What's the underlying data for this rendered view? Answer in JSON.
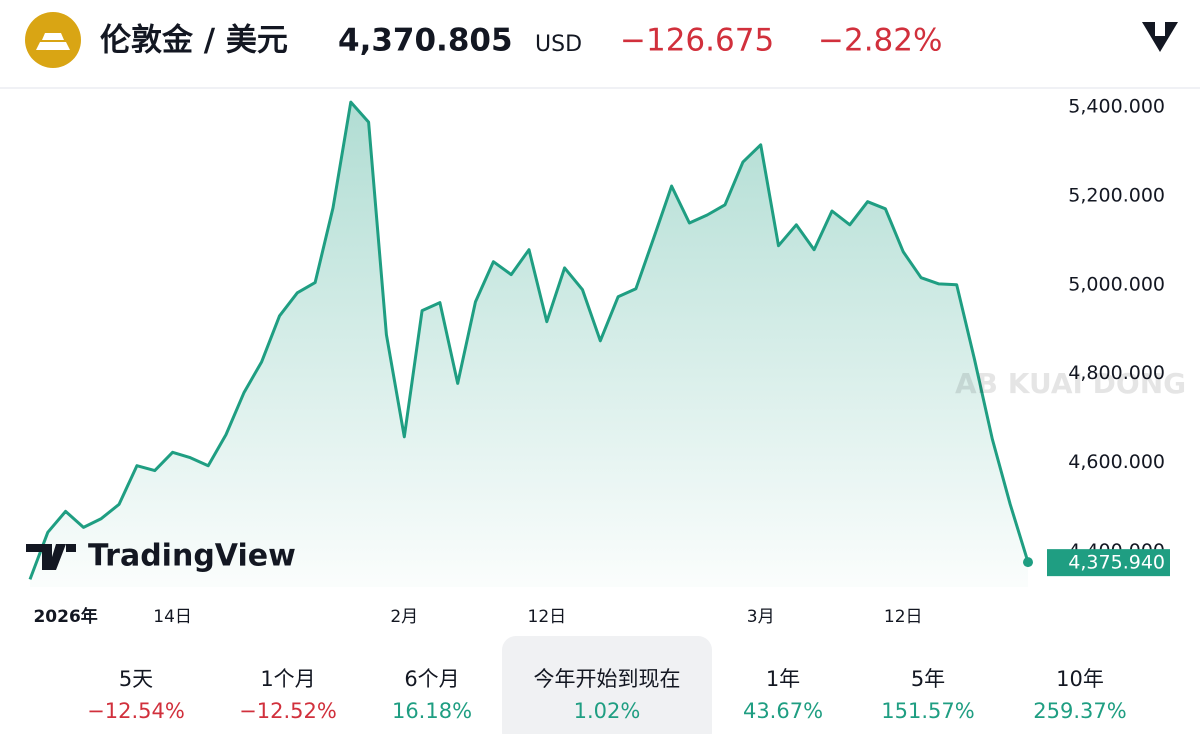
{
  "header": {
    "title": "伦敦金 / 美元",
    "price": "4,370.805",
    "currency": "USD",
    "change": "−126.675",
    "change_percent": "−2.82%"
  },
  "chart_data": {
    "type": "line",
    "color": "#1f9e82",
    "categories": [
      null,
      null,
      "2026年",
      null,
      null,
      null,
      null,
      null,
      "14日",
      null,
      null,
      null,
      null,
      null,
      null,
      null,
      null,
      null,
      null,
      null,
      null,
      "2月",
      null,
      null,
      null,
      null,
      null,
      null,
      null,
      "12日",
      null,
      null,
      null,
      null,
      null,
      null,
      null,
      null,
      null,
      null,
      null,
      "3月",
      null,
      null,
      null,
      null,
      null,
      null,
      null,
      "12日",
      null,
      null,
      null,
      null,
      null,
      null,
      null
    ],
    "values": [
      4337,
      4443,
      4490,
      4454,
      4474,
      4506,
      4593,
      4582,
      4623,
      4611,
      4593,
      4663,
      4757,
      4827,
      4930,
      4982,
      5005,
      5173,
      5411,
      5366,
      4888,
      4658,
      4942,
      4960,
      4778,
      4962,
      5052,
      5023,
      5079,
      4917,
      5038,
      4989,
      4874,
      4973,
      4991,
      5106,
      5222,
      5139,
      5157,
      5180,
      5276,
      5315,
      5088,
      5135,
      5079,
      5166,
      5135,
      5187,
      5171,
      5074,
      5016,
      5002,
      5000,
      4832,
      4652,
      4506,
      4375.94
    ],
    "last_label": "4,375.940",
    "ylim": [
      4320,
      5445
    ],
    "yticks": [
      {
        "value": 4400,
        "label": "4,400.000"
      },
      {
        "value": 4600,
        "label": "4,600.000"
      },
      {
        "value": 4800,
        "label": "4,800.000"
      },
      {
        "value": 5000,
        "label": "5,000.000"
      },
      {
        "value": 5200,
        "label": "5,200.000"
      },
      {
        "value": 5400,
        "label": "5,400.000"
      }
    ],
    "watermark": "AB KUAI DONG",
    "logo": "TradingView"
  },
  "periods": [
    {
      "label": "5天",
      "change": "−12.54%"
    },
    {
      "label": "1个月",
      "change": "−12.52%"
    },
    {
      "label": "6个月",
      "change": "16.18%"
    },
    {
      "label": "今年开始到现在",
      "change": "1.02%",
      "selected": true
    },
    {
      "label": "1年",
      "change": "43.67%"
    },
    {
      "label": "5年",
      "change": "151.57%"
    },
    {
      "label": "10年",
      "change": "259.37%"
    }
  ]
}
